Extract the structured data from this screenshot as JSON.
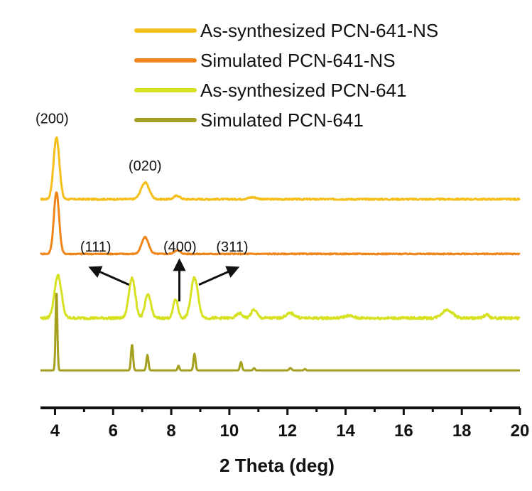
{
  "chart_data": {
    "type": "line",
    "title": "",
    "xlabel": "2 Theta (deg)",
    "ylabel": "",
    "xlim": [
      3.5,
      20
    ],
    "x_ticks": [
      4,
      6,
      8,
      10,
      12,
      14,
      16,
      18,
      20
    ],
    "y_axis_shown": false,
    "grid": false,
    "legend_position": "top-right",
    "series": [
      {
        "name": "As-synthesized PCN-641-NS",
        "color": "#f5bf1b",
        "baseline": 0.8,
        "noise": 0.006,
        "line_width": 3,
        "peaks": [
          [
            4.05,
            0.26,
            0.1
          ],
          [
            7.1,
            0.07,
            0.14
          ],
          [
            8.2,
            0.015,
            0.1
          ],
          [
            10.8,
            0.008,
            0.15
          ]
        ]
      },
      {
        "name": "Simulated PCN-641-NS",
        "color": "#f08519",
        "baseline": 0.57,
        "noise": 0.004,
        "line_width": 3,
        "peaks": [
          [
            4.05,
            0.26,
            0.09
          ],
          [
            7.1,
            0.07,
            0.12
          ],
          [
            8.2,
            0.015,
            0.1
          ]
        ]
      },
      {
        "name": "As-synthesized PCN-641",
        "color": "#d6e221",
        "baseline": 0.3,
        "noise": 0.01,
        "line_width": 3,
        "peaks": [
          [
            4.1,
            0.18,
            0.12
          ],
          [
            6.65,
            0.17,
            0.11
          ],
          [
            7.2,
            0.1,
            0.1
          ],
          [
            8.15,
            0.08,
            0.08
          ],
          [
            8.8,
            0.17,
            0.12
          ],
          [
            10.35,
            0.02,
            0.1
          ],
          [
            10.85,
            0.035,
            0.1
          ],
          [
            12.1,
            0.02,
            0.15
          ],
          [
            14.1,
            0.01,
            0.15
          ],
          [
            17.5,
            0.035,
            0.18
          ],
          [
            18.85,
            0.015,
            0.08
          ]
        ]
      },
      {
        "name": "Simulated PCN-641",
        "color": "#a5a01f",
        "baseline": 0.08,
        "noise": 0.0,
        "line_width": 3,
        "peaks": [
          [
            4.05,
            0.34,
            0.03
          ],
          [
            6.65,
            0.11,
            0.035
          ],
          [
            7.18,
            0.065,
            0.035
          ],
          [
            8.25,
            0.02,
            0.03
          ],
          [
            8.8,
            0.07,
            0.035
          ],
          [
            10.4,
            0.035,
            0.035
          ],
          [
            10.85,
            0.01,
            0.03
          ],
          [
            12.1,
            0.01,
            0.04
          ],
          [
            12.6,
            0.006,
            0.03
          ]
        ]
      }
    ],
    "annotations": [
      {
        "text": "(200)",
        "x": 3.9,
        "y": 1.12
      },
      {
        "text": "(020)",
        "x": 7.1,
        "y": 0.92
      },
      {
        "text": "(111)",
        "x": 5.4,
        "y": 0.58
      },
      {
        "text": "(400)",
        "x": 8.3,
        "y": 0.58
      },
      {
        "text": "(311)",
        "x": 10.1,
        "y": 0.58
      }
    ],
    "arrows": [
      {
        "from": [
          6.55,
          0.44
        ],
        "to": [
          5.35,
          0.505
        ]
      },
      {
        "from": [
          8.28,
          0.37
        ],
        "to": [
          8.28,
          0.525
        ]
      },
      {
        "from": [
          8.95,
          0.44
        ],
        "to": [
          10.15,
          0.505
        ]
      }
    ]
  }
}
